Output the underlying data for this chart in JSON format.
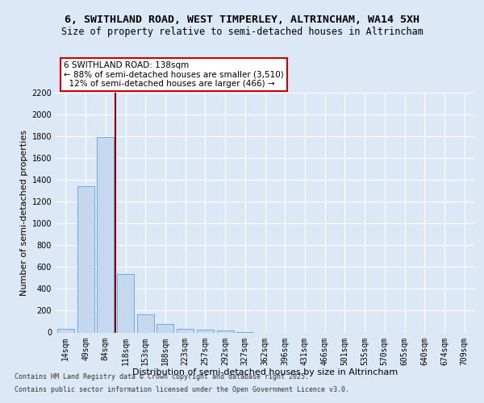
{
  "title": "6, SWITHLAND ROAD, WEST TIMPERLEY, ALTRINCHAM, WA14 5XH",
  "subtitle": "Size of property relative to semi-detached houses in Altrincham",
  "xlabel": "Distribution of semi-detached houses by size in Altrincham",
  "ylabel": "Number of semi-detached properties",
  "categories": [
    "14sqm",
    "49sqm",
    "84sqm",
    "118sqm",
    "153sqm",
    "188sqm",
    "223sqm",
    "257sqm",
    "292sqm",
    "327sqm",
    "362sqm",
    "396sqm",
    "431sqm",
    "466sqm",
    "501sqm",
    "535sqm",
    "570sqm",
    "605sqm",
    "640sqm",
    "674sqm",
    "709sqm"
  ],
  "values": [
    30,
    1340,
    1790,
    535,
    165,
    80,
    35,
    25,
    20,
    5,
    0,
    0,
    0,
    0,
    0,
    0,
    0,
    0,
    0,
    0,
    0
  ],
  "bar_color": "#c5d8f0",
  "bar_edge_color": "#6aabdc",
  "vline_x": 2.5,
  "vline_color": "#8b0000",
  "annotation_text": "6 SWITHLAND ROAD: 138sqm\n← 88% of semi-detached houses are smaller (3,510)\n  12% of semi-detached houses are larger (466) →",
  "annotation_box_color": "#ffffff",
  "annotation_box_edge_color": "#cc0000",
  "ylim_max": 2200,
  "yticks": [
    0,
    200,
    400,
    600,
    800,
    1000,
    1200,
    1400,
    1600,
    1800,
    2000,
    2200
  ],
  "bg_color": "#dce8f5",
  "plot_bg_color": "#dce8f5",
  "grid_color": "#ffffff",
  "footer_line1": "Contains HM Land Registry data © Crown copyright and database right 2025.",
  "footer_line2": "Contains public sector information licensed under the Open Government Licence v3.0.",
  "title_fontsize": 9.5,
  "subtitle_fontsize": 8.5,
  "tick_fontsize": 7,
  "label_fontsize": 8,
  "annot_fontsize": 7.5
}
